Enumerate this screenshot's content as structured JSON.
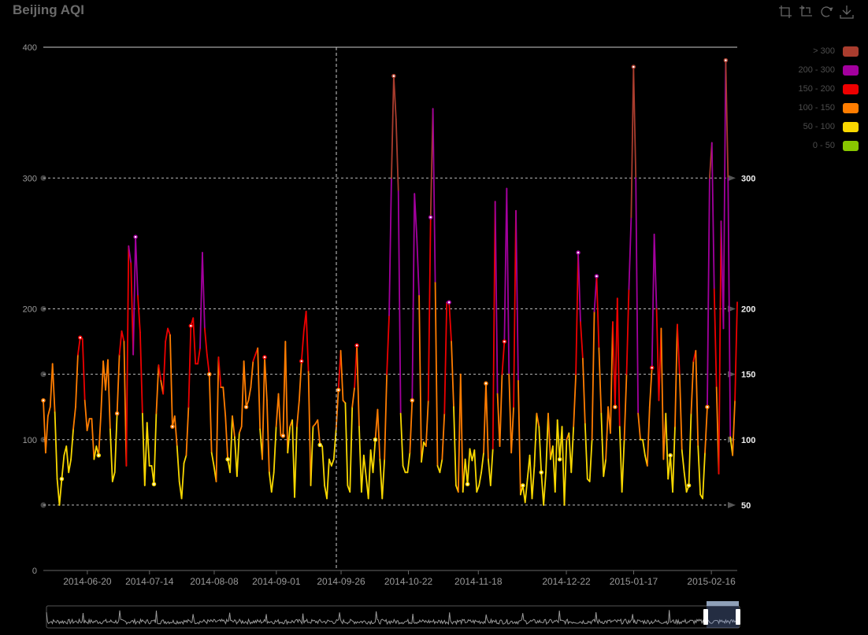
{
  "title": "Beijing AQI",
  "toolbox": [
    {
      "name": "zoom-icon"
    },
    {
      "name": "zoom-reset-icon"
    },
    {
      "name": "restore-icon"
    },
    {
      "name": "save-image-icon"
    }
  ],
  "legend": [
    {
      "label": "> 300",
      "color": "#aa3d2e"
    },
    {
      "label": "200 - 300",
      "color": "#a3009e"
    },
    {
      "label": "150 - 200",
      "color": "#ee0000"
    },
    {
      "label": "100 - 150",
      "color": "#ff7d00"
    },
    {
      "label": "50 - 100",
      "color": "#f9d800"
    },
    {
      "label": "0 - 50",
      "color": "#88c700"
    }
  ],
  "marklines": [
    {
      "label": "50",
      "value": 50
    },
    {
      "label": "100",
      "value": 100
    },
    {
      "label": "150",
      "value": 150
    },
    {
      "label": "200",
      "value": 200
    },
    {
      "label": "300",
      "value": 300
    }
  ],
  "colors": {
    "background": "#000000",
    "axis": "#cccccc",
    "tick": "#999999",
    "crosshair": "#cccccc"
  },
  "chart_data": {
    "type": "line",
    "title": "Beijing AQI",
    "x_start": "2014-06-03",
    "x_end": "2015-02-26",
    "ylim": [
      0,
      400
    ],
    "yticks": [
      "0",
      "100",
      "200",
      "300",
      "400"
    ],
    "xticks": [
      "2014-06-20",
      "2014-07-14",
      "2014-08-08",
      "2014-09-01",
      "2014-09-26",
      "2014-10-22",
      "2014-11-18",
      "2014-12-22",
      "2015-01-17",
      "2015-02-16"
    ],
    "pieces": [
      {
        "gt": 0,
        "lte": 50,
        "color": "#88c700"
      },
      {
        "gt": 50,
        "lte": 100,
        "color": "#f9d800"
      },
      {
        "gt": 100,
        "lte": 150,
        "color": "#ff7d00"
      },
      {
        "gt": 150,
        "lte": 200,
        "color": "#ee0000"
      },
      {
        "gt": 200,
        "lte": 300,
        "color": "#a3009e"
      },
      {
        "gt": 300,
        "color": "#aa3d2e"
      }
    ],
    "values": [
      130,
      90,
      118,
      125,
      158,
      121,
      70,
      50,
      70,
      88,
      95,
      75,
      85,
      108,
      125,
      165,
      178,
      177,
      130,
      107,
      116,
      116,
      85,
      95,
      88,
      120,
      160,
      138,
      161,
      108,
      68,
      75,
      120,
      165,
      183,
      175,
      80,
      248,
      235,
      165,
      255,
      210,
      182,
      120,
      65,
      113,
      80,
      80,
      66,
      120,
      157,
      145,
      135,
      175,
      185,
      180,
      110,
      118,
      95,
      68,
      55,
      82,
      88,
      125,
      187,
      193,
      158,
      158,
      170,
      243,
      185,
      165,
      150,
      90,
      80,
      68,
      163,
      140,
      140,
      118,
      85,
      75,
      118,
      102,
      72,
      105,
      110,
      160,
      125,
      130,
      140,
      160,
      165,
      170,
      108,
      85,
      163,
      130,
      75,
      60,
      75,
      110,
      135,
      103,
      103,
      175,
      90,
      110,
      115,
      56,
      110,
      130,
      160,
      183,
      198,
      152,
      65,
      110,
      112,
      115,
      96,
      95,
      65,
      55,
      85,
      80,
      85,
      108,
      138,
      168,
      130,
      128,
      65,
      60,
      125,
      140,
      172,
      110,
      60,
      88,
      72,
      55,
      92,
      75,
      100,
      123,
      85,
      55,
      85,
      150,
      195,
      300,
      378,
      345,
      290,
      120,
      80,
      75,
      75,
      90,
      130,
      288,
      255,
      210,
      83,
      98,
      95,
      130,
      270,
      353,
      220,
      80,
      75,
      85,
      120,
      205,
      205,
      175,
      125,
      65,
      60,
      150,
      60,
      85,
      66,
      93,
      84,
      92,
      60,
      65,
      75,
      90,
      143,
      85,
      65,
      93,
      282,
      135,
      95,
      150,
      175,
      292,
      150,
      90,
      125,
      275,
      145,
      58,
      65,
      52,
      70,
      88,
      55,
      80,
      120,
      110,
      75,
      50,
      75,
      120,
      85,
      95,
      60,
      115,
      85,
      110,
      50,
      100,
      105,
      75,
      110,
      150,
      243,
      190,
      162,
      112,
      70,
      68,
      100,
      198,
      225,
      170,
      120,
      72,
      85,
      125,
      105,
      190,
      125,
      208,
      110,
      60,
      100,
      150,
      215,
      270,
      385,
      300,
      120,
      100,
      100,
      88,
      80,
      125,
      155,
      257,
      200,
      130,
      185,
      85,
      120,
      70,
      88,
      60,
      110,
      188,
      150,
      92,
      75,
      60,
      65,
      120,
      160,
      168,
      95,
      58,
      55,
      90,
      125,
      300,
      327,
      215,
      140,
      74,
      267,
      185,
      390,
      300,
      102,
      88,
      130,
      205
    ]
  }
}
